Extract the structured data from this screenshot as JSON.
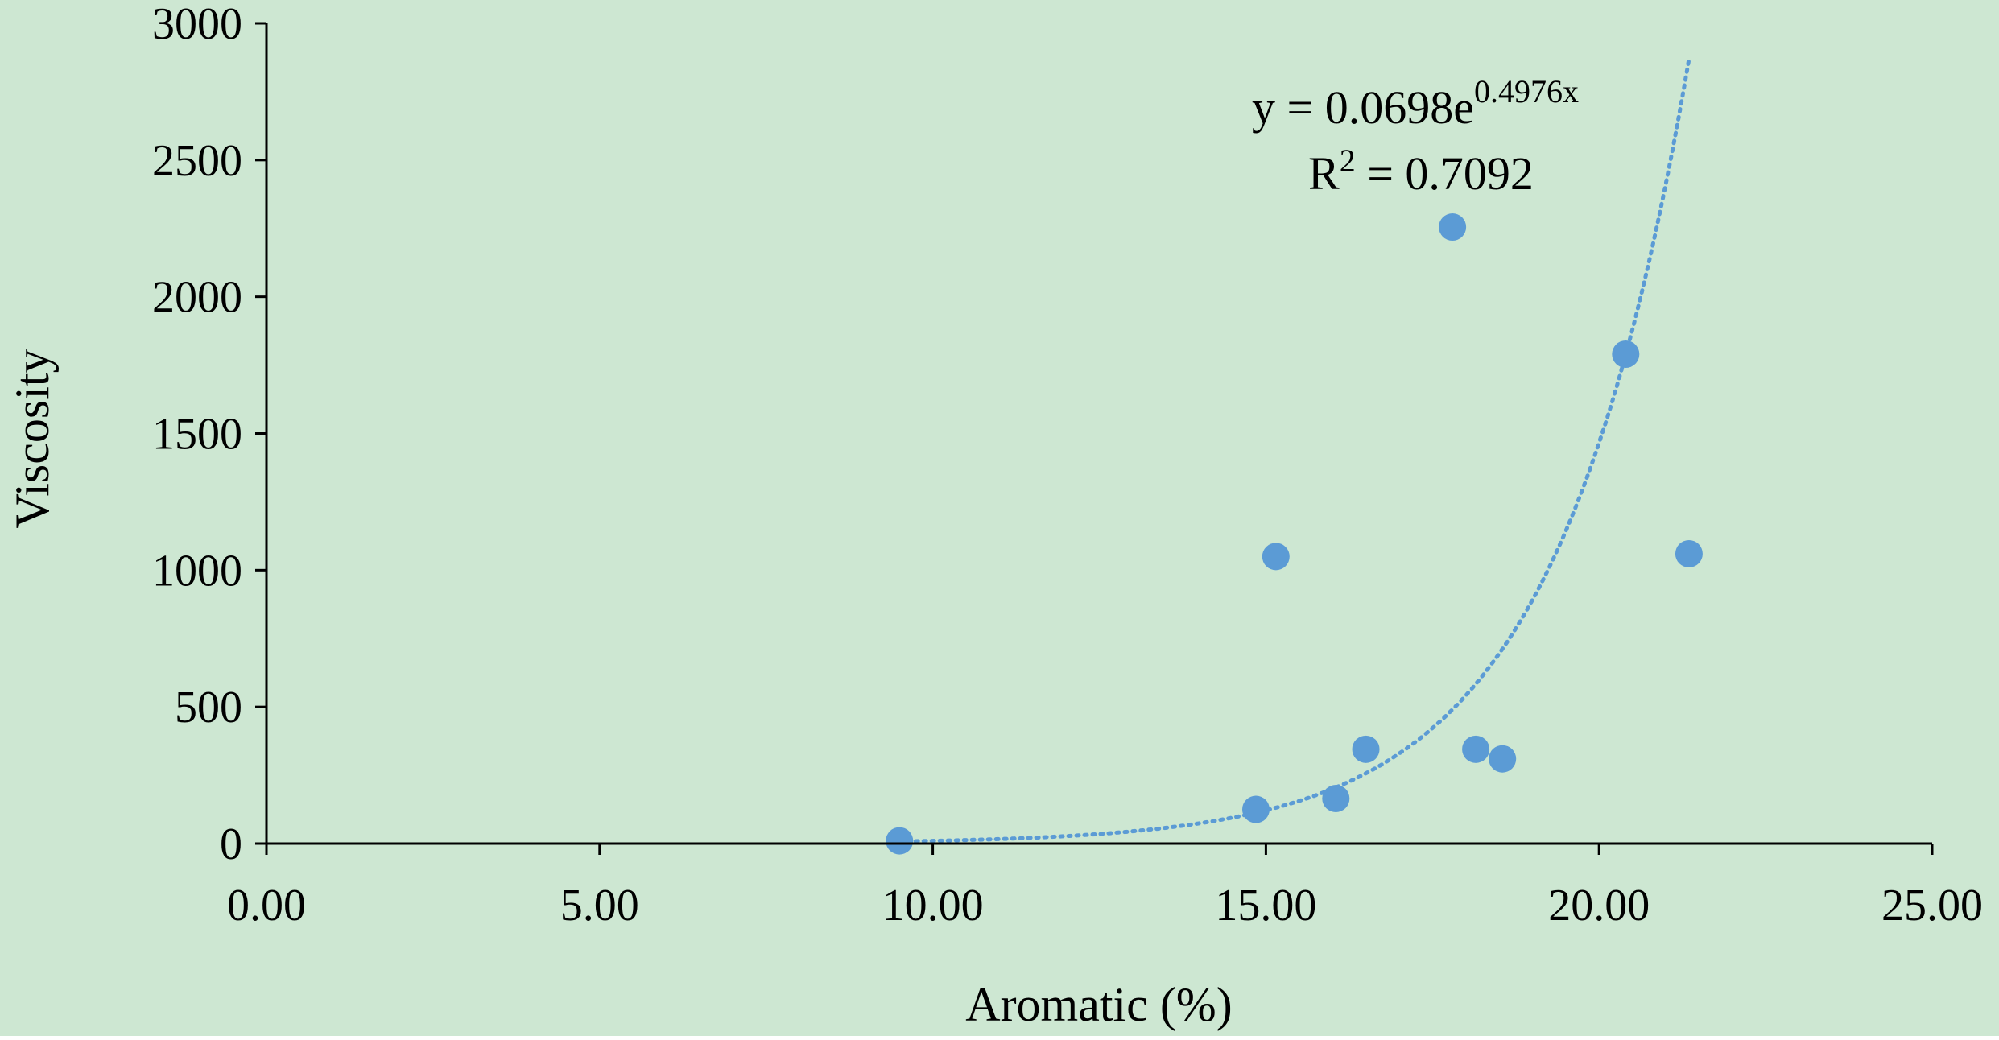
{
  "chart_data": {
    "type": "scatter",
    "xlabel": "Aromatic (%)",
    "ylabel": "Viscosity",
    "xlim": [
      0,
      25
    ],
    "ylim": [
      0,
      3000
    ],
    "x_ticks": [
      0,
      5,
      10,
      15,
      20,
      25
    ],
    "x_tick_labels": [
      "0.00",
      "5.00",
      "10.00",
      "15.00",
      "20.00",
      "25.00"
    ],
    "y_ticks": [
      0,
      500,
      1000,
      1500,
      2000,
      2500,
      3000
    ],
    "y_tick_labels": [
      "0",
      "500",
      "1000",
      "1500",
      "2000",
      "2500",
      "3000"
    ],
    "grid": false,
    "background_color": "#cde7d2",
    "marker_color": "#5b9bd5",
    "trendline_color": "#5b9bd5",
    "points": [
      {
        "x": 9.5,
        "y": 10
      },
      {
        "x": 14.85,
        "y": 125
      },
      {
        "x": 15.15,
        "y": 1050
      },
      {
        "x": 16.05,
        "y": 165
      },
      {
        "x": 16.5,
        "y": 345
      },
      {
        "x": 17.8,
        "y": 2255
      },
      {
        "x": 18.15,
        "y": 345
      },
      {
        "x": 18.55,
        "y": 310
      },
      {
        "x": 20.4,
        "y": 1790
      },
      {
        "x": 21.35,
        "y": 1060
      }
    ],
    "trendline": {
      "type": "exponential",
      "a": 0.0698,
      "b": 0.4976,
      "x_range": [
        9.5,
        21.35
      ]
    },
    "annotations": {
      "equation_prefix": "y = 0.0698e",
      "equation_exponent": "0.4976x",
      "r2_prefix": "R",
      "r2_sup": "2",
      "r2_value": " = 0.7092"
    }
  }
}
